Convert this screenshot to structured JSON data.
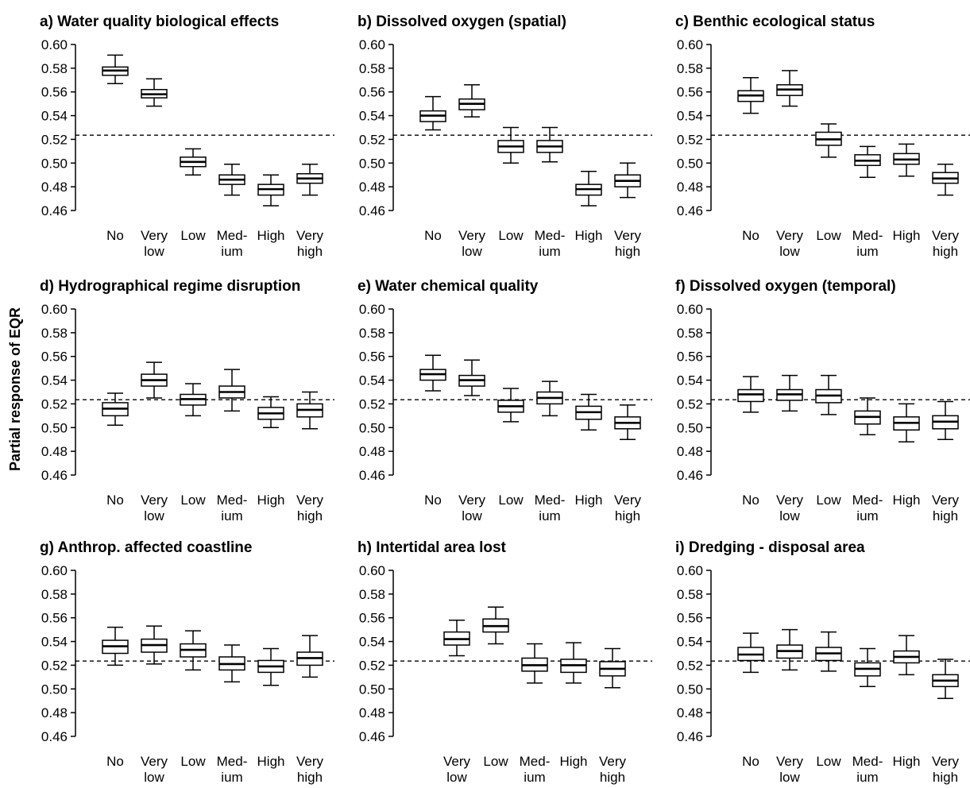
{
  "ylabel": "Partial response of EQR",
  "reference_line": 0.5235,
  "ylim": [
    0.46,
    0.6
  ],
  "yticks": [
    "0.60",
    "0.58",
    "0.56",
    "0.54",
    "0.52",
    "0.50",
    "0.48",
    "0.46"
  ],
  "chart_data": [
    {
      "type": "boxplot",
      "title": "a) Water quality biological effects",
      "categories": [
        [
          "No"
        ],
        [
          "Very",
          "low"
        ],
        [
          "Low"
        ],
        [
          "Med-",
          "ium"
        ],
        [
          "High"
        ],
        [
          "Very",
          "high"
        ]
      ],
      "boxes": [
        {
          "min": 0.567,
          "q1": 0.574,
          "median": 0.578,
          "q3": 0.581,
          "max": 0.591
        },
        {
          "min": 0.548,
          "q1": 0.555,
          "median": 0.558,
          "q3": 0.562,
          "max": 0.571
        },
        {
          "min": 0.49,
          "q1": 0.497,
          "median": 0.501,
          "q3": 0.505,
          "max": 0.512
        },
        {
          "min": 0.473,
          "q1": 0.482,
          "median": 0.486,
          "q3": 0.49,
          "max": 0.499
        },
        {
          "min": 0.464,
          "q1": 0.473,
          "median": 0.478,
          "q3": 0.482,
          "max": 0.49
        },
        {
          "min": 0.473,
          "q1": 0.483,
          "median": 0.487,
          "q3": 0.491,
          "max": 0.499
        }
      ]
    },
    {
      "type": "boxplot",
      "title": "b) Dissolved oxygen (spatial)",
      "categories": [
        [
          "No"
        ],
        [
          "Very",
          "low"
        ],
        [
          "Low"
        ],
        [
          "Med-",
          "ium"
        ],
        [
          "High"
        ],
        [
          "Very",
          "high"
        ]
      ],
      "boxes": [
        {
          "min": 0.528,
          "q1": 0.535,
          "median": 0.54,
          "q3": 0.544,
          "max": 0.556
        },
        {
          "min": 0.539,
          "q1": 0.545,
          "median": 0.55,
          "q3": 0.554,
          "max": 0.566
        },
        {
          "min": 0.5,
          "q1": 0.509,
          "median": 0.514,
          "q3": 0.519,
          "max": 0.53
        },
        {
          "min": 0.501,
          "q1": 0.509,
          "median": 0.514,
          "q3": 0.519,
          "max": 0.53
        },
        {
          "min": 0.464,
          "q1": 0.473,
          "median": 0.478,
          "q3": 0.482,
          "max": 0.493
        },
        {
          "min": 0.471,
          "q1": 0.48,
          "median": 0.485,
          "q3": 0.49,
          "max": 0.5
        }
      ]
    },
    {
      "type": "boxplot",
      "title": "c) Benthic ecological status",
      "categories": [
        [
          "No"
        ],
        [
          "Very",
          "low"
        ],
        [
          "Low"
        ],
        [
          "Med-",
          "ium"
        ],
        [
          "High"
        ],
        [
          "Very",
          "high"
        ]
      ],
      "boxes": [
        {
          "min": 0.542,
          "q1": 0.552,
          "median": 0.557,
          "q3": 0.561,
          "max": 0.572
        },
        {
          "min": 0.548,
          "q1": 0.557,
          "median": 0.562,
          "q3": 0.566,
          "max": 0.578
        },
        {
          "min": 0.505,
          "q1": 0.515,
          "median": 0.52,
          "q3": 0.526,
          "max": 0.533
        },
        {
          "min": 0.488,
          "q1": 0.498,
          "median": 0.502,
          "q3": 0.507,
          "max": 0.514
        },
        {
          "min": 0.489,
          "q1": 0.499,
          "median": 0.503,
          "q3": 0.508,
          "max": 0.516
        },
        {
          "min": 0.473,
          "q1": 0.483,
          "median": 0.487,
          "q3": 0.492,
          "max": 0.499
        }
      ]
    },
    {
      "type": "boxplot",
      "title": "d) Hydrographical regime disruption",
      "categories": [
        [
          "No"
        ],
        [
          "Very",
          "low"
        ],
        [
          "Low"
        ],
        [
          "Med-",
          "ium"
        ],
        [
          "High"
        ],
        [
          "Very",
          "high"
        ]
      ],
      "boxes": [
        {
          "min": 0.502,
          "q1": 0.51,
          "median": 0.516,
          "q3": 0.521,
          "max": 0.529
        },
        {
          "min": 0.525,
          "q1": 0.535,
          "median": 0.54,
          "q3": 0.545,
          "max": 0.555
        },
        {
          "min": 0.51,
          "q1": 0.519,
          "median": 0.524,
          "q3": 0.528,
          "max": 0.537
        },
        {
          "min": 0.514,
          "q1": 0.525,
          "median": 0.53,
          "q3": 0.535,
          "max": 0.549
        },
        {
          "min": 0.5,
          "q1": 0.507,
          "median": 0.512,
          "q3": 0.517,
          "max": 0.526
        },
        {
          "min": 0.499,
          "q1": 0.509,
          "median": 0.515,
          "q3": 0.52,
          "max": 0.53
        }
      ]
    },
    {
      "type": "boxplot",
      "title": "e) Water chemical quality",
      "categories": [
        [
          "No"
        ],
        [
          "Very",
          "low"
        ],
        [
          "Low"
        ],
        [
          "Med-",
          "ium"
        ],
        [
          "High"
        ],
        [
          "Very",
          "high"
        ]
      ],
      "boxes": [
        {
          "min": 0.531,
          "q1": 0.54,
          "median": 0.545,
          "q3": 0.549,
          "max": 0.561
        },
        {
          "min": 0.527,
          "q1": 0.535,
          "median": 0.54,
          "q3": 0.544,
          "max": 0.557
        },
        {
          "min": 0.505,
          "q1": 0.513,
          "median": 0.518,
          "q3": 0.523,
          "max": 0.533
        },
        {
          "min": 0.51,
          "q1": 0.52,
          "median": 0.525,
          "q3": 0.53,
          "max": 0.539
        },
        {
          "min": 0.498,
          "q1": 0.507,
          "median": 0.513,
          "q3": 0.518,
          "max": 0.528
        },
        {
          "min": 0.49,
          "q1": 0.499,
          "median": 0.504,
          "q3": 0.509,
          "max": 0.519
        }
      ]
    },
    {
      "type": "boxplot",
      "title": "f) Dissolved oxygen (temporal)",
      "categories": [
        [
          "No"
        ],
        [
          "Very",
          "low"
        ],
        [
          "Low"
        ],
        [
          "Med-",
          "ium"
        ],
        [
          "High"
        ],
        [
          "Very",
          "high"
        ]
      ],
      "boxes": [
        {
          "min": 0.513,
          "q1": 0.522,
          "median": 0.528,
          "q3": 0.532,
          "max": 0.543
        },
        {
          "min": 0.514,
          "q1": 0.523,
          "median": 0.528,
          "q3": 0.532,
          "max": 0.544
        },
        {
          "min": 0.511,
          "q1": 0.521,
          "median": 0.527,
          "q3": 0.532,
          "max": 0.544
        },
        {
          "min": 0.494,
          "q1": 0.503,
          "median": 0.509,
          "q3": 0.514,
          "max": 0.525
        },
        {
          "min": 0.488,
          "q1": 0.498,
          "median": 0.504,
          "q3": 0.509,
          "max": 0.52
        },
        {
          "min": 0.49,
          "q1": 0.499,
          "median": 0.505,
          "q3": 0.51,
          "max": 0.522
        }
      ]
    },
    {
      "type": "boxplot",
      "title": "g) Anthrop. affected coastline",
      "categories": [
        [
          "No"
        ],
        [
          "Very",
          "low"
        ],
        [
          "Low"
        ],
        [
          "Med-",
          "ium"
        ],
        [
          "High"
        ],
        [
          "Very",
          "high"
        ]
      ],
      "boxes": [
        {
          "min": 0.52,
          "q1": 0.53,
          "median": 0.536,
          "q3": 0.541,
          "max": 0.552
        },
        {
          "min": 0.521,
          "q1": 0.531,
          "median": 0.537,
          "q3": 0.542,
          "max": 0.553
        },
        {
          "min": 0.516,
          "q1": 0.527,
          "median": 0.533,
          "q3": 0.538,
          "max": 0.549
        },
        {
          "min": 0.506,
          "q1": 0.516,
          "median": 0.521,
          "q3": 0.527,
          "max": 0.537
        },
        {
          "min": 0.503,
          "q1": 0.514,
          "median": 0.519,
          "q3": 0.524,
          "max": 0.534
        },
        {
          "min": 0.51,
          "q1": 0.52,
          "median": 0.526,
          "q3": 0.531,
          "max": 0.545
        }
      ]
    },
    {
      "type": "boxplot",
      "title": "h) Intertidal area lost",
      "categories": [
        [
          "Very",
          "low"
        ],
        [
          "Low"
        ],
        [
          "Med-",
          "ium"
        ],
        [
          "High"
        ],
        [
          "Very",
          "high"
        ]
      ],
      "boxes": [
        {
          "min": 0.528,
          "q1": 0.537,
          "median": 0.542,
          "q3": 0.548,
          "max": 0.558
        },
        {
          "min": 0.538,
          "q1": 0.548,
          "median": 0.553,
          "q3": 0.559,
          "max": 0.569
        },
        {
          "min": 0.505,
          "q1": 0.515,
          "median": 0.52,
          "q3": 0.526,
          "max": 0.538
        },
        {
          "min": 0.505,
          "q1": 0.514,
          "median": 0.52,
          "q3": 0.525,
          "max": 0.539
        },
        {
          "min": 0.501,
          "q1": 0.511,
          "median": 0.517,
          "q3": 0.523,
          "max": 0.534
        }
      ]
    },
    {
      "type": "boxplot",
      "title": "i) Dredging - disposal area",
      "categories": [
        [
          "No"
        ],
        [
          "Very",
          "low"
        ],
        [
          "Low"
        ],
        [
          "Med-",
          "ium"
        ],
        [
          "High"
        ],
        [
          "Very",
          "high"
        ]
      ],
      "boxes": [
        {
          "min": 0.514,
          "q1": 0.524,
          "median": 0.529,
          "q3": 0.535,
          "max": 0.547
        },
        {
          "min": 0.516,
          "q1": 0.526,
          "median": 0.532,
          "q3": 0.537,
          "max": 0.55
        },
        {
          "min": 0.515,
          "q1": 0.524,
          "median": 0.53,
          "q3": 0.535,
          "max": 0.548
        },
        {
          "min": 0.502,
          "q1": 0.511,
          "median": 0.517,
          "q3": 0.522,
          "max": 0.534
        },
        {
          "min": 0.512,
          "q1": 0.522,
          "median": 0.527,
          "q3": 0.532,
          "max": 0.545
        },
        {
          "min": 0.492,
          "q1": 0.502,
          "median": 0.507,
          "q3": 0.512,
          "max": 0.525
        }
      ]
    }
  ]
}
